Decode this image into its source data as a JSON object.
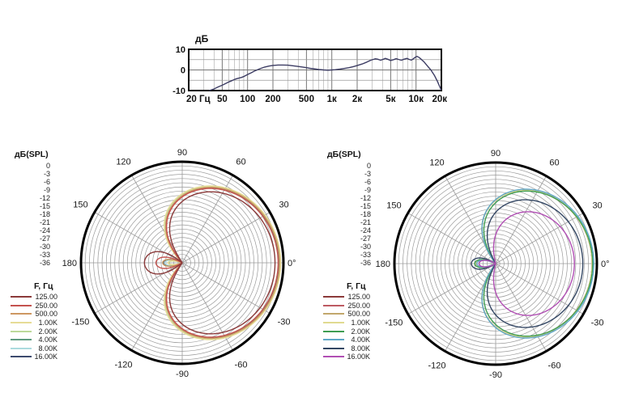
{
  "chart_data": [
    {
      "id": "frequency_response",
      "type": "line",
      "title": "дБ",
      "xlim_hz": [
        20,
        20000
      ],
      "ylim_db": [
        -10,
        10
      ],
      "x_scale": "log",
      "grid": true,
      "y_tick_labels": [
        "10",
        "0",
        "-10"
      ],
      "y_tick_values": [
        10,
        0,
        -10
      ],
      "y_gridlines_db": [
        5,
        0,
        -5
      ],
      "x_ticks": [
        {
          "label": "20 Гц",
          "value": 20
        },
        {
          "label": "50",
          "value": 50
        },
        {
          "label": "100",
          "value": 100
        },
        {
          "label": "200",
          "value": 200
        },
        {
          "label": "500",
          "value": 500
        },
        {
          "label": "1к",
          "value": 1000
        },
        {
          "label": "2к",
          "value": 2000
        },
        {
          "label": "5к",
          "value": 5000
        },
        {
          "label": "10к",
          "value": 10000
        },
        {
          "label": "20к",
          "value": 20000
        }
      ],
      "minor_gridlines_hz": [
        30,
        40,
        60,
        70,
        80,
        90,
        300,
        400,
        600,
        700,
        800,
        900,
        3000,
        4000,
        6000,
        7000,
        8000,
        9000
      ],
      "line_color": "#3c3c63",
      "points": [
        [
          35,
          -10
        ],
        [
          40,
          -9.2
        ],
        [
          45,
          -8.2
        ],
        [
          50,
          -7.4
        ],
        [
          55,
          -6.6
        ],
        [
          60,
          -5.8
        ],
        [
          65,
          -5.2
        ],
        [
          70,
          -4.6
        ],
        [
          75,
          -4.2
        ],
        [
          80,
          -3.9
        ],
        [
          85,
          -3.6
        ],
        [
          90,
          -3.2
        ],
        [
          100,
          -2.2
        ],
        [
          110,
          -1.4
        ],
        [
          120,
          -0.6
        ],
        [
          140,
          0.6
        ],
        [
          160,
          1.4
        ],
        [
          180,
          1.9
        ],
        [
          200,
          2.2
        ],
        [
          230,
          2.4
        ],
        [
          260,
          2.4
        ],
        [
          300,
          2.3
        ],
        [
          350,
          2.0
        ],
        [
          400,
          1.7
        ],
        [
          450,
          1.4
        ],
        [
          500,
          1.1
        ],
        [
          550,
          0.8
        ],
        [
          600,
          0.6
        ],
        [
          650,
          0.4
        ],
        [
          700,
          0.2
        ],
        [
          800,
          0.0
        ],
        [
          900,
          -0.1
        ],
        [
          1000,
          0.0
        ],
        [
          1100,
          0.1
        ],
        [
          1250,
          0.4
        ],
        [
          1400,
          0.7
        ],
        [
          1600,
          1.1
        ],
        [
          1800,
          1.6
        ],
        [
          2000,
          2.1
        ],
        [
          2300,
          2.9
        ],
        [
          2600,
          3.8
        ],
        [
          2900,
          4.7
        ],
        [
          3100,
          5.1
        ],
        [
          3300,
          5.4
        ],
        [
          3500,
          5.2
        ],
        [
          3800,
          4.7
        ],
        [
          4100,
          5.2
        ],
        [
          4300,
          5.6
        ],
        [
          4600,
          5.2
        ],
        [
          5000,
          4.6
        ],
        [
          5400,
          5.0
        ],
        [
          5800,
          5.5
        ],
        [
          6200,
          5.1
        ],
        [
          6700,
          4.7
        ],
        [
          7200,
          5.2
        ],
        [
          7800,
          5.6
        ],
        [
          8300,
          5.1
        ],
        [
          8800,
          4.8
        ],
        [
          9300,
          5.4
        ],
        [
          9800,
          6.2
        ],
        [
          10300,
          6.6
        ],
        [
          10900,
          6.0
        ],
        [
          11500,
          5.2
        ],
        [
          12500,
          3.8
        ],
        [
          13500,
          2.2
        ],
        [
          15000,
          0.0
        ],
        [
          16500,
          -2.6
        ],
        [
          18000,
          -5.6
        ],
        [
          19500,
          -9.0
        ],
        [
          20000,
          -10
        ]
      ]
    },
    {
      "id": "polar_left",
      "type": "polar",
      "title": "дБ(SPL)",
      "legend_title": "F, Гц",
      "rlim_db": [
        -36,
        0
      ],
      "ring_step_db": 1.5,
      "angle_step_deg": 30,
      "main_lobe_direction_deg": 0,
      "radial_ticks": [
        "0",
        "-3",
        "-6",
        "-9",
        "-12",
        "-15",
        "-18",
        "-21",
        "-24",
        "-27",
        "-30",
        "-33",
        "-36"
      ],
      "angle_labels": [
        {
          "angle": 90,
          "label": "90"
        },
        {
          "angle": 120,
          "label": "120"
        },
        {
          "angle": 150,
          "label": "150"
        },
        {
          "angle": 180,
          "label": "180"
        },
        {
          "angle": 210,
          "label": "-150"
        },
        {
          "angle": 240,
          "label": "-120"
        },
        {
          "angle": 270,
          "label": "-90"
        },
        {
          "angle": 300,
          "label": "-60"
        },
        {
          "angle": 330,
          "label": "-30"
        },
        {
          "angle": 0,
          "label": "0°"
        },
        {
          "angle": 30,
          "label": "30"
        },
        {
          "angle": 60,
          "label": "60"
        }
      ],
      "draw_reversed": true,
      "series": [
        {
          "label": "125.00",
          "color": "#8b3a3a",
          "pattern": {
            "a": 0.4,
            "n": 1.4,
            "offset_db": -3.0
          }
        },
        {
          "label": "250.00",
          "color": "#c4524e",
          "pattern": {
            "a": 0.43,
            "n": 1.45,
            "offset_db": -1.9
          }
        },
        {
          "label": "500.00",
          "color": "#cd9761",
          "pattern": {
            "a": 0.44,
            "n": 1.5,
            "offset_db": -1.4
          }
        },
        {
          "label": "1.00K",
          "color": "#e6dc96",
          "pattern": {
            "a": 0.45,
            "n": 1.5,
            "offset_db": -1.0
          }
        },
        {
          "label": "2.00K",
          "color": "#bcd99a",
          "pattern": {
            "a": 0.45,
            "n": 1.5,
            "offset_db": -1.2
          }
        },
        {
          "label": "4.00K",
          "color": "#5f9b80",
          "pattern": {
            "a": 0.44,
            "n": 1.5,
            "offset_db": -1.5
          }
        },
        {
          "label": "8.00K",
          "color": "#abdbde",
          "pattern": {
            "a": 0.445,
            "n": 1.5,
            "offset_db": -1.2
          }
        },
        {
          "label": "16.00K",
          "color": "#3c4a6e",
          "pattern": {
            "a": 0.44,
            "n": 1.5,
            "offset_db": -1.7
          }
        }
      ]
    },
    {
      "id": "polar_right",
      "type": "polar",
      "title": "дБ(SPL)",
      "legend_title": "F, Гц",
      "rlim_db": [
        -36,
        0
      ],
      "ring_step_db": 1.5,
      "angle_step_deg": 30,
      "main_lobe_direction_deg": 0,
      "radial_ticks": [
        "0",
        "-3",
        "-6",
        "-9",
        "-12",
        "-15",
        "-18",
        "-21",
        "-24",
        "-27",
        "-30",
        "-33",
        "-36"
      ],
      "angle_labels": [
        {
          "angle": 90,
          "label": "90"
        },
        {
          "angle": 120,
          "label": "120"
        },
        {
          "angle": 150,
          "label": "150"
        },
        {
          "angle": 180,
          "label": "180"
        },
        {
          "angle": 210,
          "label": "-150"
        },
        {
          "angle": 240,
          "label": "-120"
        },
        {
          "angle": 270,
          "label": "-90"
        },
        {
          "angle": 300,
          "label": "-60"
        },
        {
          "angle": 330,
          "label": "-30"
        },
        {
          "angle": 0,
          "label": "0°"
        },
        {
          "angle": 30,
          "label": "30"
        },
        {
          "angle": 60,
          "label": "60"
        }
      ],
      "draw_reversed": false,
      "series": [
        {
          "label": "125.00",
          "color": "#8b3a3a",
          "pattern": {
            "a": 0.43,
            "n": 1.6,
            "offset_db": -1.7
          }
        },
        {
          "label": "250.00",
          "color": "#bd5a62",
          "pattern": {
            "a": 0.43,
            "n": 1.6,
            "offset_db": -1.7
          }
        },
        {
          "label": "500.00",
          "color": "#c2a76c",
          "pattern": {
            "a": 0.43,
            "n": 1.6,
            "offset_db": -1.7
          }
        },
        {
          "label": "1.00K",
          "color": "#e0da90",
          "pattern": {
            "a": 0.43,
            "n": 1.6,
            "offset_db": -1.7
          }
        },
        {
          "label": "2.00K",
          "color": "#3f9d52",
          "pattern": {
            "a": 0.42,
            "n": 1.7,
            "offset_db": -1.5
          }
        },
        {
          "label": "4.00K",
          "color": "#5fa8c8",
          "pattern": {
            "a": 0.43,
            "n": 1.65,
            "offset_db": -1.1
          }
        },
        {
          "label": "8.00K",
          "color": "#334663",
          "pattern": {
            "a": 0.4,
            "n": 1.6,
            "offset_db": -5.0
          }
        },
        {
          "label": "16.00K",
          "color": "#b14fb4",
          "pattern": {
            "a": 0.36,
            "n": 2.0,
            "offset_db": -8.0
          }
        }
      ]
    }
  ]
}
